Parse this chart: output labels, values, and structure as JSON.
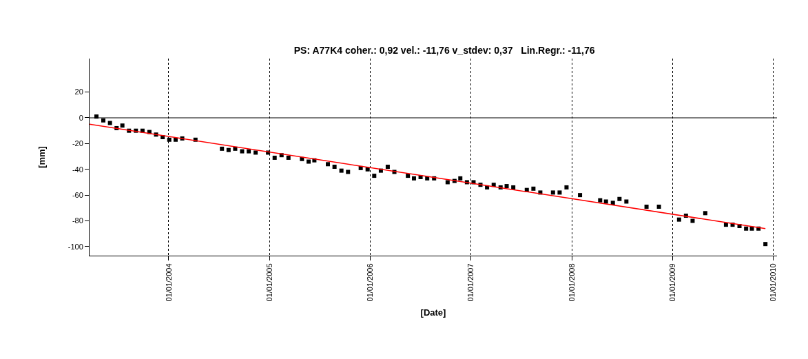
{
  "chart_data": {
    "type": "scatter",
    "title": "PS: A77K4 coher.: 0,92 vel.: -11,76 v_stdev: 0,37   Lin.Regr.: -11,76",
    "xlabel": "[Date]",
    "ylabel": "[mm]",
    "series": [
      {
        "color": "#000000",
        "marker": "square",
        "x": [
          "2003-04-14",
          "2003-05-09",
          "2003-06-02",
          "2003-06-26",
          "2003-07-17",
          "2003-08-10",
          "2003-09-04",
          "2003-09-28",
          "2003-10-23",
          "2003-11-16",
          "2003-12-10",
          "2004-01-03",
          "2004-01-26",
          "2004-02-19",
          "2004-04-07",
          "2004-07-12",
          "2004-08-05",
          "2004-08-29",
          "2004-09-23",
          "2004-10-17",
          "2004-11-11",
          "2004-12-26",
          "2005-01-19",
          "2005-02-13",
          "2005-03-10",
          "2005-04-28",
          "2005-05-22",
          "2005-06-12",
          "2005-07-31",
          "2005-08-24",
          "2005-09-18",
          "2005-10-12",
          "2005-11-27",
          "2005-12-22",
          "2006-01-15",
          "2006-02-08",
          "2006-03-05",
          "2006-03-29",
          "2006-05-17",
          "2006-06-08",
          "2006-07-02",
          "2006-07-26",
          "2006-08-20",
          "2006-10-08",
          "2006-11-02",
          "2006-11-23",
          "2006-12-17",
          "2007-01-10",
          "2007-02-04",
          "2007-02-28",
          "2007-03-24",
          "2007-04-18",
          "2007-05-10",
          "2007-06-03",
          "2007-07-22",
          "2007-08-15",
          "2007-09-09",
          "2007-10-25",
          "2007-11-18",
          "2007-12-13",
          "2008-01-31",
          "2008-04-13",
          "2008-05-04",
          "2008-05-29",
          "2008-06-22",
          "2008-07-17",
          "2008-09-28",
          "2008-11-12",
          "2009-01-24",
          "2009-02-18",
          "2009-03-14",
          "2009-04-29",
          "2009-07-13",
          "2009-08-06",
          "2009-08-31",
          "2009-09-24",
          "2009-10-15",
          "2009-11-08",
          "2009-12-03"
        ],
        "values": [
          1,
          -2,
          -4,
          -8,
          -6,
          -10,
          -10,
          -10,
          -11,
          -13,
          -15,
          -17,
          -17,
          -16,
          -17,
          -24,
          -25,
          -24,
          -26,
          -26,
          -27,
          -27,
          -31,
          -29,
          -31,
          -32,
          -34,
          -33,
          -36,
          -38,
          -41,
          -42,
          -39,
          -40,
          -45,
          -41,
          -38,
          -42,
          -45,
          -47,
          -46,
          -47,
          -47,
          -50,
          -49,
          -47,
          -50,
          -50,
          -52,
          -54,
          -52,
          -54,
          -53,
          -54,
          -56,
          -55,
          -58,
          -58,
          -58,
          -54,
          -60,
          -64,
          -65,
          -66,
          -63,
          -65,
          -69,
          -69,
          -79,
          -76,
          -80,
          -74,
          -83,
          -83,
          -84,
          -86,
          -86,
          -86,
          -98
        ]
      },
      {
        "type": "line",
        "color": "#ff0000",
        "line_style": "solid",
        "x": [
          "2003-03-20",
          "2009-12-03"
        ],
        "values": [
          -5,
          -86
        ]
      }
    ],
    "xlim": [
      "2003-03-20",
      "2010-01-14"
    ],
    "xticks": [
      {
        "value": "2004-01-01",
        "label": "01/01/2004"
      },
      {
        "value": "2005-01-01",
        "label": "01/01/2005"
      },
      {
        "value": "2006-01-01",
        "label": "01/01/2006"
      },
      {
        "value": "2007-01-01",
        "label": "01/01/2007"
      },
      {
        "value": "2008-01-01",
        "label": "01/01/2008"
      },
      {
        "value": "2009-01-01",
        "label": "01/01/2009"
      },
      {
        "value": "2010-01-01",
        "label": "01/01/2010"
      }
    ],
    "ylim": [
      -107,
      46
    ],
    "yticks": [
      -100,
      -80,
      -60,
      -40,
      -20,
      0,
      20
    ],
    "grid": "x",
    "ref_lines": [
      {
        "axis": "y",
        "value": 0,
        "color": "#000000",
        "line_style": "solid"
      }
    ]
  }
}
